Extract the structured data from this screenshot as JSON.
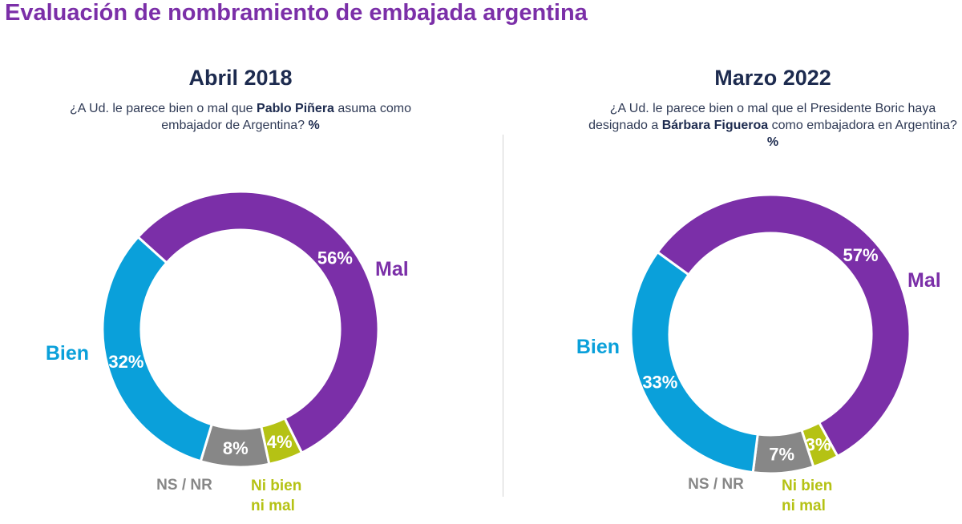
{
  "title": "Evaluación de nombramiento de embajada argentina",
  "colors": {
    "mal": "#7b2fa8",
    "bien": "#0aa0da",
    "ns_nr": "#878787",
    "ni_bien_ni_mal": "#b5c214"
  },
  "chart_data": [
    {
      "type": "pie",
      "variant": "donut",
      "title": "Abril 2018",
      "question_pre": "¿A Ud. le parece bien o mal que ",
      "question_bold": "Pablo Piñera",
      "question_post": " asuma como embajador de Argentina? ",
      "question_unit": "%",
      "slices": [
        {
          "key": "mal",
          "label": "Mal",
          "value": 56,
          "value_label": "56%"
        },
        {
          "key": "ni_bien_ni_mal",
          "label_line1": "Ni bien",
          "label_line2": "ni mal",
          "value": 4,
          "value_label": "4%"
        },
        {
          "key": "ns_nr",
          "label": "NS / NR",
          "value": 8,
          "value_label": "8%"
        },
        {
          "key": "bien",
          "label": "Bien",
          "value": 32,
          "value_label": "32%"
        }
      ]
    },
    {
      "type": "pie",
      "variant": "donut",
      "title": "Marzo 2022",
      "question_pre": "¿A Ud. le parece bien o mal que el Presidente Boric haya designado a ",
      "question_bold": "Bárbara Figueroa",
      "question_post": " como embajadora en Argentina? ",
      "question_unit": "%",
      "slices": [
        {
          "key": "mal",
          "label": "Mal",
          "value": 57,
          "value_label": "57%"
        },
        {
          "key": "ni_bien_ni_mal",
          "label_line1": "Ni bien",
          "label_line2": "ni mal",
          "value": 3,
          "value_label": "3%"
        },
        {
          "key": "ns_nr",
          "label": "NS / NR",
          "value": 7,
          "value_label": "7%"
        },
        {
          "key": "bien",
          "label": "Bien",
          "value": 33,
          "value_label": "33%"
        }
      ]
    }
  ]
}
